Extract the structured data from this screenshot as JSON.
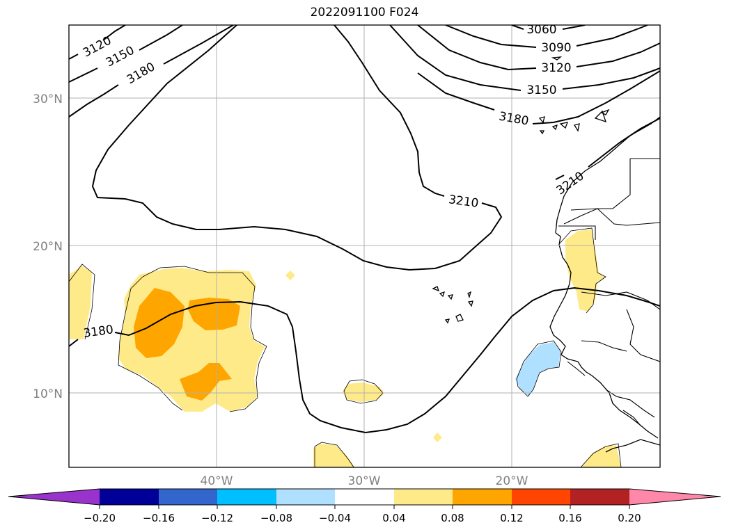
{
  "title": "2022091100 F024",
  "lat_labels": [
    "30°N",
    "20°N",
    "10°N"
  ],
  "lon_labels": [
    "40°W",
    "30°W",
    "20°W"
  ],
  "contour_labels": [
    "3060",
    "3090",
    "3120",
    "3150",
    "3180",
    "3120",
    "3150",
    "3180",
    "3210",
    "3210",
    "3180"
  ],
  "colorbar": {
    "colors": [
      "#9933cc",
      "#000099",
      "#3366cc",
      "#00bfff",
      "#b0e0ff",
      "#ffffff",
      "#ffea8a",
      "#ffa500",
      "#ff4500",
      "#b22222",
      "#ff88aa"
    ],
    "ticks": [
      "−0.20",
      "−0.16",
      "−0.12",
      "−0.08",
      "−0.04",
      "0.04",
      "0.08",
      "0.12",
      "0.16",
      "0.20"
    ]
  },
  "shading_colors": {
    "light_yellow": "#ffea8a",
    "orange": "#ffa500",
    "light_blue": "#b0e0ff"
  }
}
